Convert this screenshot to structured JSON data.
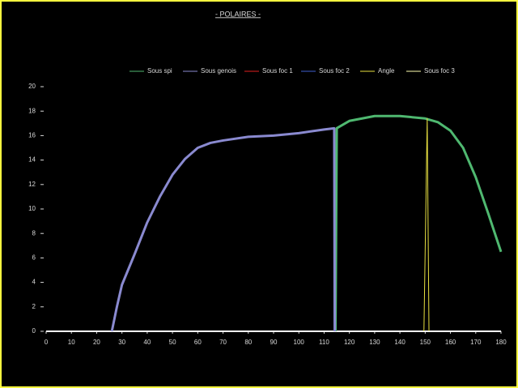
{
  "chart_data": {
    "type": "line",
    "title": "- POLAIRES -",
    "xlim": [
      0,
      180
    ],
    "xticks": [
      0,
      10,
      20,
      30,
      40,
      50,
      60,
      70,
      80,
      90,
      100,
      110,
      120,
      130,
      140,
      150,
      160,
      170,
      180
    ],
    "ylim": [
      0,
      20
    ],
    "yticks": [
      0,
      2,
      4,
      6,
      8,
      10,
      12,
      14,
      16,
      18,
      20
    ],
    "series": [
      {
        "name": "Sous spi",
        "color": "#4fb870",
        "width": 3,
        "x": [
          114.5,
          115,
          120,
          125,
          130,
          140,
          150,
          155,
          160,
          165,
          170,
          175,
          180
        ],
        "values": [
          0,
          16.6,
          17.2,
          17.4,
          17.6,
          17.6,
          17.4,
          17.1,
          16.4,
          15.0,
          12.6,
          9.6,
          6.5
        ]
      },
      {
        "name": "Sous genois",
        "color": "#8a8ad0",
        "width": 3,
        "x": [
          26,
          28,
          30,
          35,
          40,
          45,
          50,
          55,
          60,
          65,
          70,
          80,
          90,
          100,
          110,
          114,
          114.2
        ],
        "values": [
          0,
          2.0,
          3.8,
          6.3,
          8.9,
          11.0,
          12.8,
          14.1,
          15.0,
          15.4,
          15.6,
          15.9,
          16.0,
          16.2,
          16.5,
          16.6,
          0
        ]
      },
      {
        "name": "Sous foc 1",
        "color": "#e02020",
        "width": 2,
        "x": [],
        "values": []
      },
      {
        "name": "Sous foc 2",
        "color": "#4060d0",
        "width": 2,
        "x": [],
        "values": []
      },
      {
        "name": "Angle",
        "color": "#e8e040",
        "width": 1,
        "x": [
          149.5,
          150.8,
          151.5
        ],
        "values": [
          0,
          17.4,
          0
        ]
      },
      {
        "name": "Sous foc 3",
        "color": "#ffffb0",
        "width": 1,
        "x": [],
        "values": []
      }
    ]
  }
}
